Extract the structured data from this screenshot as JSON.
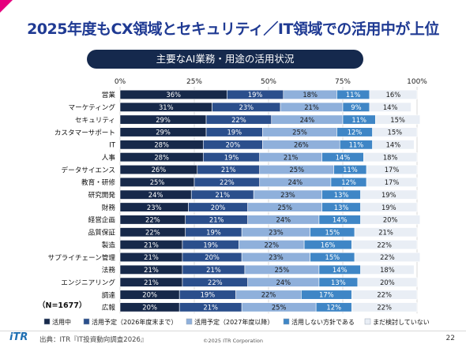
{
  "header": {
    "title": "2025年度もCX領域とセキュリティ／IT領域での活用中が上位",
    "subtitle": "主要なAI業務・用途の活用状況"
  },
  "sample_note": "（N=1677）",
  "footer": {
    "logo": "iTR",
    "source": "出典：ITR『IT投資動向調査2026』",
    "copyright": "©2025 ITR Corporation",
    "page": "22"
  },
  "colors": {
    "title": "#1f3a93",
    "accent_corner": "#e6007e",
    "pill_bg": "#15294d"
  },
  "chart_data": {
    "type": "bar",
    "orientation": "horizontal",
    "stacked": true,
    "xlim": [
      0,
      100
    ],
    "x_ticks": [
      "0%",
      "25%",
      "50%",
      "75%",
      "100%"
    ],
    "grid": true,
    "legend_position": "bottom",
    "categories": [
      "営業",
      "マーケティング",
      "セキュリティ",
      "カスタマーサポート",
      "IT",
      "人事",
      "データサイエンス",
      "教育・研修",
      "研究開発",
      "財務",
      "経営企画",
      "品質保証",
      "製造",
      "サプライチェーン管理",
      "法務",
      "エンジニアリング",
      "調達",
      "広報"
    ],
    "series": [
      {
        "name": "活用中",
        "color": "#17294a",
        "label_color": "#ffffff",
        "values": [
          36,
          31,
          29,
          29,
          28,
          28,
          26,
          25,
          24,
          23,
          22,
          22,
          21,
          21,
          21,
          21,
          20,
          20
        ]
      },
      {
        "name": "活用予定（2026年度末まで）",
        "color": "#2b4f8c",
        "label_color": "#ffffff",
        "values": [
          19,
          23,
          22,
          19,
          20,
          19,
          21,
          22,
          21,
          20,
          21,
          19,
          19,
          20,
          21,
          22,
          19,
          21
        ]
      },
      {
        "name": "活用予定（2027年度以降）",
        "color": "#8fb0db",
        "label_color": "#1a1a1a",
        "values": [
          18,
          21,
          24,
          25,
          26,
          21,
          25,
          24,
          23,
          25,
          24,
          23,
          22,
          23,
          25,
          24,
          22,
          25
        ]
      },
      {
        "name": "活用しない方針である",
        "color": "#3f86c6",
        "label_color": "#ffffff",
        "values": [
          11,
          9,
          11,
          12,
          11,
          14,
          11,
          12,
          13,
          13,
          14,
          15,
          16,
          15,
          14,
          13,
          17,
          12
        ]
      },
      {
        "name": "まだ検討していない",
        "color": "#e9eef5",
        "label_color": "#1a1a1a",
        "values": [
          16,
          14,
          15,
          15,
          14,
          18,
          17,
          17,
          19,
          19,
          20,
          21,
          22,
          22,
          18,
          20,
          22,
          22
        ]
      }
    ]
  }
}
